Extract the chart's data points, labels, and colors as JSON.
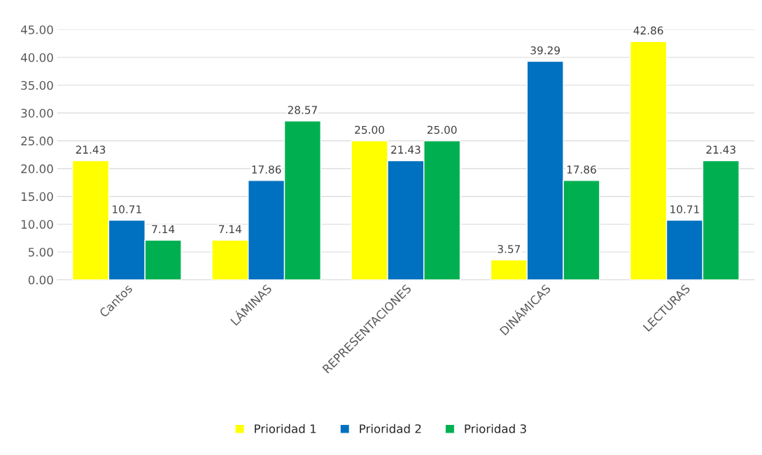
{
  "chart_data": {
    "type": "bar",
    "categories": [
      "Cantos",
      "LÁMINAS",
      "REPRESENTACIONES",
      "DINÁMICAS",
      "LECTURAS"
    ],
    "series": [
      {
        "name": "Prioridad 1",
        "color": "#ffff00",
        "values": [
          21.43,
          7.14,
          25.0,
          3.57,
          42.86
        ],
        "value_labels": [
          "21.43",
          "7.14",
          "25.00",
          "3.57",
          "42.86"
        ]
      },
      {
        "name": "Prioridad 2",
        "color": "#0070c0",
        "values": [
          10.71,
          17.86,
          21.43,
          39.29,
          10.71
        ],
        "value_labels": [
          "10.71",
          "17.86",
          "21.43",
          "39.29",
          "10.71"
        ]
      },
      {
        "name": "Prioridad 3",
        "color": "#00b050",
        "values": [
          7.14,
          28.57,
          25.0,
          17.86,
          21.43
        ],
        "value_labels": [
          "7.14",
          "28.57",
          "25.00",
          "17.86",
          "21.43"
        ]
      }
    ],
    "ylim": [
      0,
      45
    ],
    "yticks": [
      {
        "value": 0,
        "label": "0.00"
      },
      {
        "value": 5,
        "label": "5.00"
      },
      {
        "value": 10,
        "label": "10.00"
      },
      {
        "value": 15,
        "label": "15.00"
      },
      {
        "value": 20,
        "label": "20.00"
      },
      {
        "value": 25,
        "label": "25.00"
      },
      {
        "value": 30,
        "label": "30.00"
      },
      {
        "value": 35,
        "label": "35.00"
      },
      {
        "value": 40,
        "label": "40.00"
      },
      {
        "value": 45,
        "label": "45.00"
      }
    ],
    "grid": "y",
    "legend": "bottom"
  }
}
